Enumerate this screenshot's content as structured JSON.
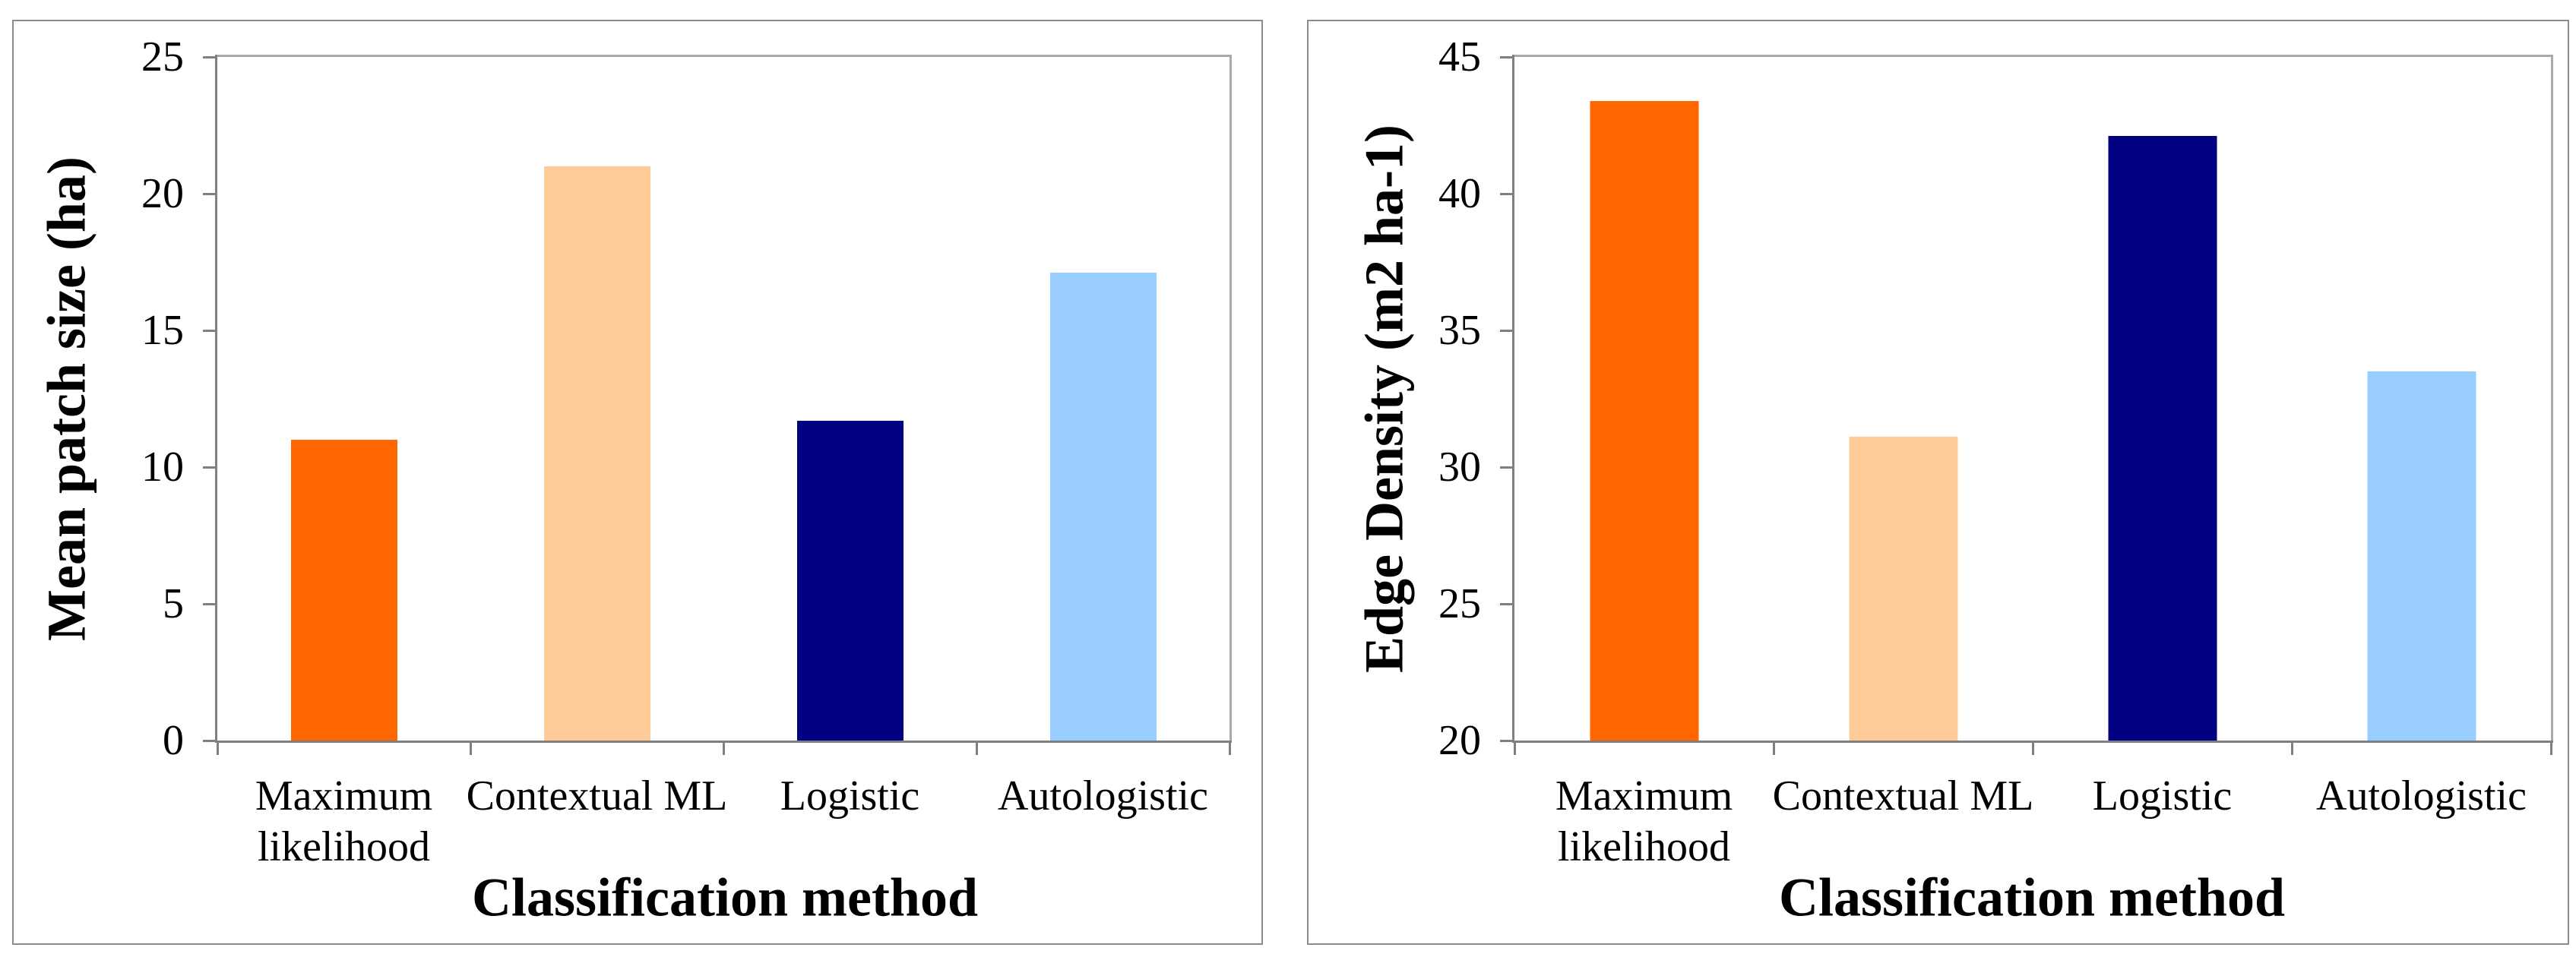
{
  "page": {
    "background": "#FFFFFF"
  },
  "colors": {
    "axis": "#808080",
    "plot_border": "#A9A9A9",
    "panel_border": "#8C8C8C",
    "text": "#000000"
  },
  "chart_data": [
    {
      "type": "bar",
      "title": "",
      "categories": [
        "Maximum likelihood",
        "Contextual ML",
        "Logistic",
        "Autologistic"
      ],
      "values": [
        11.0,
        21.0,
        11.7,
        17.1
      ],
      "xlabel": "Classification method",
      "ylabel": "Mean patch size (ha)",
      "ylim": [
        0,
        25
      ],
      "ytick_step": 5,
      "ytick_labels": [
        "0",
        "5",
        "10",
        "15",
        "20",
        "25"
      ],
      "bar_colors": [
        "#FF6600",
        "#FFCC99",
        "#000080",
        "#99CCFF"
      ],
      "grid": false,
      "legend": "none"
    },
    {
      "type": "bar",
      "title": "",
      "categories": [
        "Maximum likelihood",
        "Contextual ML",
        "Logistic",
        "Autologistic"
      ],
      "values": [
        43.4,
        31.1,
        42.1,
        33.5
      ],
      "xlabel": "Classification method",
      "ylabel": "Edge Density (m2 ha-1)",
      "ylim": [
        20,
        45
      ],
      "ytick_step": 5,
      "ytick_labels": [
        "20",
        "25",
        "30",
        "35",
        "40",
        "45"
      ],
      "bar_colors": [
        "#FF6600",
        "#FFCC99",
        "#000080",
        "#99CCFF"
      ],
      "grid": false,
      "legend": "none"
    }
  ]
}
